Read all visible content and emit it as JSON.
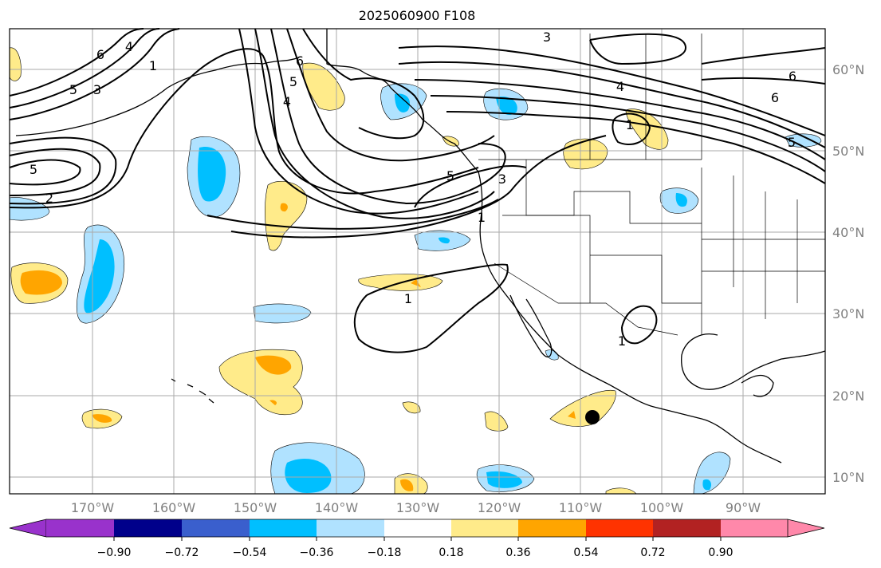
{
  "title": "2025060900 F108",
  "map": {
    "latitude_labels": [
      "60°N",
      "50°N",
      "40°N",
      "30°N",
      "20°N",
      "10°N"
    ],
    "longitude_labels": [
      "170°W",
      "160°W",
      "150°W",
      "140°W",
      "130°W",
      "120°W",
      "110°W",
      "100°W",
      "90°W"
    ],
    "contour_labels": [
      "6",
      "5",
      "3",
      "1",
      "2",
      "4",
      "6",
      "5",
      "4",
      "3",
      "4",
      "6",
      "6",
      "5",
      "5",
      "3",
      "1",
      "1",
      "1",
      "1",
      "5"
    ],
    "marker": "storm-position-dot"
  },
  "colorbar": {
    "ticks": [
      "−0.90",
      "−0.72",
      "−0.54",
      "−0.36",
      "−0.18",
      "0.18",
      "0.36",
      "0.54",
      "0.72",
      "0.90"
    ],
    "colors": [
      "#9932cc",
      "#00008b",
      "#3a5fcd",
      "#00bfff",
      "#b0e2ff",
      "#ffffff",
      "#ffeb8a",
      "#ffa500",
      "#ff3300",
      "#b22222",
      "#ff88aa"
    ]
  }
}
